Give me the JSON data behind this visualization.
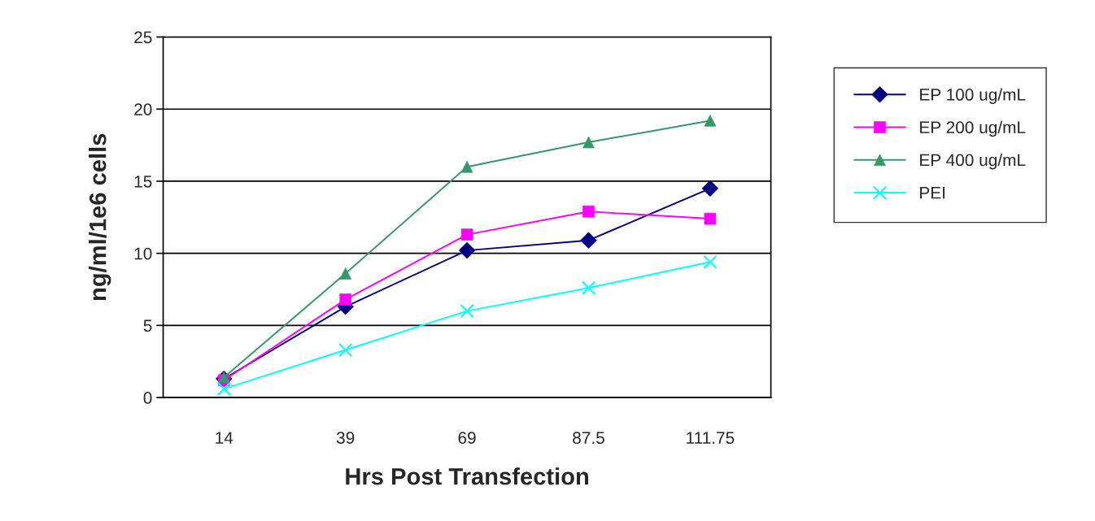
{
  "chart_data": {
    "type": "line",
    "xlabel": "Hrs Post Transfection",
    "ylabel": "ng/ml/1e6 cells",
    "categories": [
      "14",
      "39",
      "69",
      "87.5",
      "111.75"
    ],
    "series": [
      {
        "name": "EP 100 ug/mL",
        "color": "#000080",
        "marker": "diamond",
        "values": [
          1.3,
          6.3,
          10.2,
          10.9,
          14.5
        ]
      },
      {
        "name": "EP 200 ug/mL",
        "color": "#ff00ff",
        "marker": "square",
        "values": [
          1.2,
          6.8,
          11.3,
          12.9,
          12.4
        ]
      },
      {
        "name": "EP 400 ug/mL",
        "color": "#339966",
        "marker": "triangle",
        "values": [
          1.4,
          8.6,
          16.0,
          17.7,
          19.2
        ]
      },
      {
        "name": "PEI",
        "color": "#00ffff",
        "marker": "cross",
        "values": [
          0.6,
          3.3,
          6.0,
          7.6,
          9.4
        ]
      }
    ],
    "ylim": [
      0,
      25
    ],
    "yticks": [
      0,
      5,
      10,
      15,
      20,
      25
    ],
    "grid": "y",
    "legend": "right",
    "line_style": "solid"
  }
}
